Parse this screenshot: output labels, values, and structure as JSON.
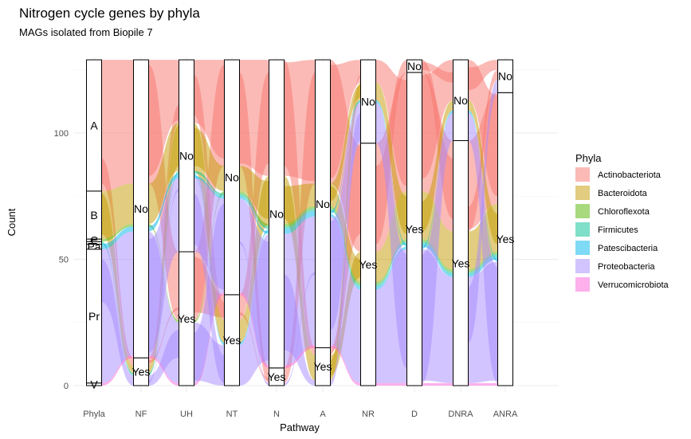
{
  "chart_data": {
    "type": "alluvial",
    "title": "Nitrogen cycle genes by phyla",
    "subtitle": "MAGs isolated from Biopile 7",
    "xlabel": "Pathway",
    "ylabel": "Count",
    "ylim": [
      0,
      130
    ],
    "yticks": [
      0,
      50,
      100
    ],
    "axes": [
      "Phyla",
      "NF",
      "UH",
      "NT",
      "N",
      "A",
      "NR",
      "D",
      "DNRA",
      "ANRA"
    ],
    "legend": {
      "title": "Phyla",
      "position": "right",
      "entries": [
        {
          "name": "Actinobacteriota",
          "color": "#F8766D"
        },
        {
          "name": "Bacteroidota",
          "color": "#C49A00"
        },
        {
          "name": "Chloroflexota",
          "color": "#53B400"
        },
        {
          "name": "Firmicutes",
          "color": "#00C094"
        },
        {
          "name": "Patescibacteria",
          "color": "#00B6EB"
        },
        {
          "name": "Proteobacteria",
          "color": "#A58AFF"
        },
        {
          "name": "Verrucomicrobiota",
          "color": "#FB61D7"
        }
      ]
    },
    "phyla_counts": [
      {
        "phylum": "Actinobacteriota",
        "label": "A",
        "count": 52
      },
      {
        "phylum": "Bacteroidota",
        "label": "B",
        "count": 19
      },
      {
        "phylum": "Chloroflexota",
        "label": "C",
        "count": 1
      },
      {
        "phylum": "Firmicutes",
        "label": "F",
        "count": 1
      },
      {
        "phylum": "Patescibacteria",
        "label": "Pa",
        "count": 2
      },
      {
        "phylum": "Proteobacteria",
        "label": "Pr",
        "count": 53
      },
      {
        "phylum": "Verrucomicrobiota",
        "label": "V",
        "count": 1
      }
    ],
    "pathway_counts": [
      {
        "pathway": "NF",
        "Yes": 11,
        "No": 118
      },
      {
        "pathway": "UH",
        "Yes": 53,
        "No": 76
      },
      {
        "pathway": "NT",
        "Yes": 36,
        "No": 93
      },
      {
        "pathway": "N",
        "Yes": 7,
        "No": 122
      },
      {
        "pathway": "A",
        "Yes": 15,
        "No": 114
      },
      {
        "pathway": "NR",
        "Yes": 96,
        "No": 33
      },
      {
        "pathway": "D",
        "Yes": 124,
        "No": 5
      },
      {
        "pathway": "DNRA",
        "Yes": 97,
        "No": 32
      },
      {
        "pathway": "ANRA",
        "Yes": 116,
        "No": 13
      }
    ]
  }
}
